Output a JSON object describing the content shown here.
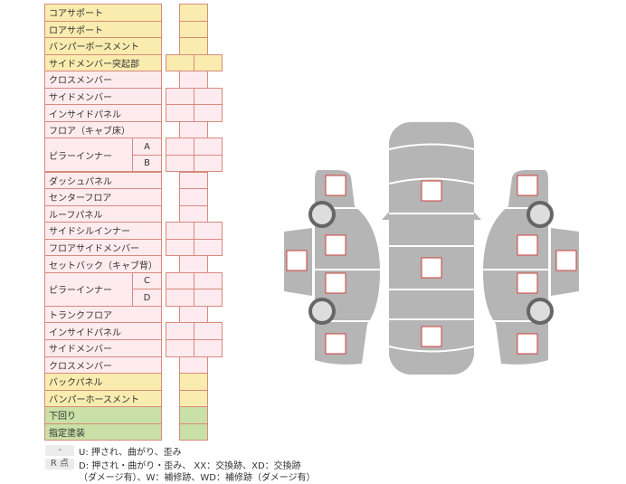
{
  "rows": [
    {
      "label": "コアサポート",
      "type": "single",
      "color": "yellow"
    },
    {
      "label": "ロアサポート",
      "type": "single",
      "color": "yellow"
    },
    {
      "label": "バンパーボースメント",
      "type": "single",
      "color": "yellow"
    },
    {
      "label": "サイドメンバー突起部",
      "type": "double",
      "color": "yellow"
    },
    {
      "label": "クロスメンバー",
      "type": "single",
      "color": "pink"
    },
    {
      "label": "サイドメンバー",
      "type": "double",
      "color": "pink"
    },
    {
      "label": "インサイドパネル",
      "type": "double",
      "color": "pink"
    },
    {
      "label": "フロア（キャブ床）",
      "type": "single",
      "color": "pink"
    },
    {
      "label": "ピラーインナー",
      "sub": "A",
      "type": "double",
      "color": "pink"
    },
    {
      "label": "",
      "sub": "B",
      "type": "double",
      "color": "pink"
    },
    {
      "label": "ダッシュパネル",
      "type": "single",
      "color": "pink"
    },
    {
      "label": "センターフロア",
      "type": "single",
      "color": "pink"
    },
    {
      "label": "ルーフパネル",
      "type": "single",
      "color": "pink"
    },
    {
      "label": "サイドシルインナー",
      "type": "double",
      "color": "pink"
    },
    {
      "label": "フロアサイドメンバー",
      "type": "double",
      "color": "pink"
    },
    {
      "label": "セットバック（キャブ背）",
      "type": "single",
      "color": "pink"
    },
    {
      "label": "ピラーインナー",
      "sub": "C",
      "type": "double",
      "color": "pink"
    },
    {
      "label": "",
      "sub": "D",
      "type": "double",
      "color": "pink"
    },
    {
      "label": "トランクフロア",
      "type": "single",
      "color": "pink"
    },
    {
      "label": "インサイドパネル",
      "type": "double",
      "color": "pink"
    },
    {
      "label": "サイドメンバー",
      "type": "double",
      "color": "pink"
    },
    {
      "label": "クロスメンバー",
      "type": "single",
      "color": "pink"
    },
    {
      "label": "バックパネル",
      "type": "single",
      "color": "yellow"
    },
    {
      "label": "バンパーホースメント",
      "type": "single",
      "color": "yellow"
    },
    {
      "label": "下回り",
      "type": "single",
      "color": "green"
    },
    {
      "label": "指定塗装",
      "type": "single",
      "color": "green"
    }
  ],
  "colors": {
    "yellow": "#f9ecae",
    "pink": "#fdebef",
    "green": "#c9e0a6",
    "border": "#d88a7c",
    "body": "#b5b5b5",
    "marker": "#d0403c"
  },
  "legend": {
    "key1": "-",
    "text1": "U: 押され、曲がり、歪み",
    "key2": "R 点",
    "text2": "D: 押され・曲がり・歪み、 XX：交換跡、XD：交換跡",
    "text3": "（ダメージ有）、W：補修跡、WD：補修跡（ダメージ有）"
  }
}
